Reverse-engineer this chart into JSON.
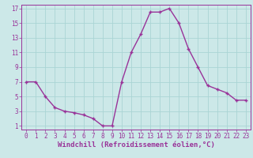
{
  "x": [
    0,
    1,
    2,
    3,
    4,
    5,
    6,
    7,
    8,
    9,
    10,
    11,
    12,
    13,
    14,
    15,
    16,
    17,
    18,
    19,
    20,
    21,
    22,
    23
  ],
  "y": [
    7,
    7,
    5,
    3.5,
    3,
    2.8,
    2.5,
    2,
    1,
    1,
    7,
    11,
    13.5,
    16.5,
    16.5,
    17,
    15,
    11.5,
    9,
    6.5,
    6,
    5.5,
    4.5,
    4.5
  ],
  "line_color": "#993399",
  "marker": "+",
  "bg_color": "#cce8e8",
  "grid_color": "#aad4d4",
  "xlabel": "Windchill (Refroidissement éolien,°C)",
  "ylabel_ticks": [
    1,
    3,
    5,
    7,
    9,
    11,
    13,
    15,
    17
  ],
  "xlim": [
    -0.5,
    23.5
  ],
  "ylim": [
    0.5,
    17.5
  ],
  "xticks": [
    0,
    1,
    2,
    3,
    4,
    5,
    6,
    7,
    8,
    9,
    10,
    11,
    12,
    13,
    14,
    15,
    16,
    17,
    18,
    19,
    20,
    21,
    22,
    23
  ],
  "tick_fontsize": 5.5,
  "xlabel_fontsize": 6.5,
  "line_width": 1.0,
  "marker_size": 3.5
}
